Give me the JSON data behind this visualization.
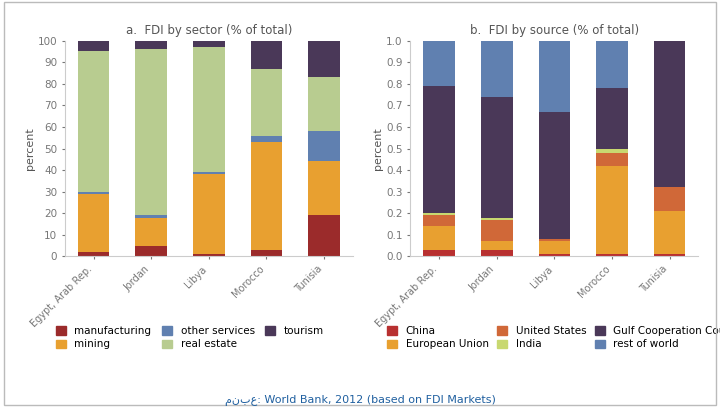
{
  "countries": [
    "Egypt, Arab Rep.",
    "Jordan",
    "Libya",
    "Morocco",
    "Tunisia"
  ],
  "sector_data": {
    "manufacturing": [
      2,
      5,
      1,
      3,
      19
    ],
    "mining": [
      27,
      13,
      37,
      50,
      25
    ],
    "other_services": [
      1,
      1,
      1,
      3,
      14
    ],
    "real_estate": [
      65,
      77,
      58,
      31,
      25
    ],
    "tourism": [
      5,
      4,
      3,
      13,
      17
    ]
  },
  "sector_colors": {
    "manufacturing": "#9B2B2B",
    "mining": "#E8A030",
    "other_services": "#6080B0",
    "real_estate": "#B8CC90",
    "tourism": "#4A3858"
  },
  "sector_labels": [
    "manufacturing",
    "mining",
    "other services",
    "real estate",
    "tourism"
  ],
  "sector_keys": [
    "manufacturing",
    "mining",
    "other_services",
    "real_estate",
    "tourism"
  ],
  "source_data": {
    "China": [
      0.03,
      0.03,
      0.01,
      0.01,
      0.01
    ],
    "European_Union": [
      0.11,
      0.04,
      0.06,
      0.41,
      0.2
    ],
    "United_States": [
      0.05,
      0.1,
      0.01,
      0.06,
      0.11
    ],
    "India": [
      0.01,
      0.01,
      0.0,
      0.02,
      0.0
    ],
    "Gulf_Cooperation_Council": [
      0.59,
      0.56,
      0.59,
      0.28,
      0.68
    ],
    "rest_of_world": [
      0.21,
      0.26,
      0.33,
      0.22,
      0.0
    ]
  },
  "source_colors": {
    "China": "#B83030",
    "European_Union": "#E8A030",
    "United_States": "#D06838",
    "India": "#C8D870",
    "Gulf_Cooperation_Council": "#4A3858",
    "rest_of_world": "#6080B0"
  },
  "source_labels": [
    "China",
    "European Union",
    "United States",
    "India",
    "Gulf Cooperation Council",
    "rest of world"
  ],
  "source_keys": [
    "China",
    "European_Union",
    "United_States",
    "India",
    "Gulf_Cooperation_Council",
    "rest_of_world"
  ],
  "title_a": "a.  FDI by sector (% of total)",
  "title_b": "b.  FDI by source (% of total)",
  "ylabel": "percent",
  "source_text": "منبع: World Bank, 2012 (based on FDI Markets)",
  "bg_color": "#FFFFFF",
  "border_color": "#AAAAAA",
  "tick_color": "#777777",
  "label_color": "#555555"
}
